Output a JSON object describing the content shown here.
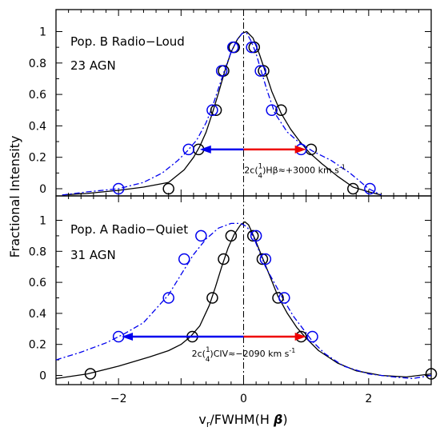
{
  "chart_data": [
    {
      "type": "line",
      "panel": "top",
      "label_line1": "Pop. B Radio−Loud",
      "label_line2": "23 AGN",
      "xlim": [
        -3,
        3
      ],
      "ylim": [
        -0.05,
        1.15
      ],
      "y_ticks": [
        "0",
        "0.2",
        "0.4",
        "0.6",
        "0.8",
        "1"
      ],
      "series": [
        {
          "color": "#000000",
          "dash": "solid",
          "marker_color": "#000000",
          "curve": [
            [
              -2.9,
              -0.04
            ],
            [
              -2.5,
              -0.03
            ],
            [
              -2.0,
              -0.01
            ],
            [
              -1.6,
              0.01
            ],
            [
              -1.2,
              0.04
            ],
            [
              -0.95,
              0.12
            ],
            [
              -0.8,
              0.2
            ],
            [
              -0.7,
              0.27
            ],
            [
              -0.6,
              0.36
            ],
            [
              -0.5,
              0.48
            ],
            [
              -0.4,
              0.61
            ],
            [
              -0.3,
              0.75
            ],
            [
              -0.2,
              0.87
            ],
            [
              -0.1,
              0.95
            ],
            [
              -0.02,
              0.99
            ],
            [
              0.05,
              1.0
            ],
            [
              0.15,
              0.96
            ],
            [
              0.25,
              0.86
            ],
            [
              0.35,
              0.74
            ],
            [
              0.45,
              0.62
            ],
            [
              0.6,
              0.48
            ],
            [
              0.75,
              0.38
            ],
            [
              0.9,
              0.3
            ],
            [
              1.05,
              0.23
            ],
            [
              1.25,
              0.16
            ],
            [
              1.5,
              0.08
            ],
            [
              1.75,
              0.01
            ],
            [
              2.0,
              -0.02
            ],
            [
              2.2,
              -0.04
            ]
          ],
          "points": [
            [
              -1.2,
              0.0
            ],
            [
              -0.72,
              0.25
            ],
            [
              -0.44,
              0.5
            ],
            [
              -0.32,
              0.75
            ],
            [
              -0.15,
              0.9
            ],
            [
              0.17,
              0.9
            ],
            [
              0.32,
              0.75
            ],
            [
              0.6,
              0.5
            ],
            [
              1.08,
              0.25
            ],
            [
              1.75,
              0.0
            ]
          ]
        },
        {
          "color": "#0000ee",
          "dash": "dashdot",
          "marker_color": "#0000ee",
          "curve": [
            [
              -2.9,
              -0.04
            ],
            [
              -2.5,
              -0.02
            ],
            [
              -2.0,
              0.0
            ],
            [
              -1.6,
              0.04
            ],
            [
              -1.3,
              0.1
            ],
            [
              -1.05,
              0.18
            ],
            [
              -0.9,
              0.24
            ],
            [
              -0.75,
              0.31
            ],
            [
              -0.6,
              0.42
            ],
            [
              -0.5,
              0.52
            ],
            [
              -0.4,
              0.64
            ],
            [
              -0.3,
              0.76
            ],
            [
              -0.2,
              0.87
            ],
            [
              -0.1,
              0.95
            ],
            [
              -0.02,
              0.99
            ],
            [
              0.05,
              0.99
            ],
            [
              0.12,
              0.94
            ],
            [
              0.2,
              0.86
            ],
            [
              0.28,
              0.75
            ],
            [
              0.38,
              0.62
            ],
            [
              0.5,
              0.48
            ],
            [
              0.7,
              0.36
            ],
            [
              0.9,
              0.29
            ],
            [
              1.1,
              0.24
            ],
            [
              1.4,
              0.18
            ],
            [
              1.7,
              0.1
            ],
            [
              2.0,
              0.0
            ],
            [
              2.2,
              -0.04
            ]
          ],
          "points": [
            [
              -2.0,
              0.0
            ],
            [
              -0.88,
              0.25
            ],
            [
              -0.5,
              0.5
            ],
            [
              -0.35,
              0.75
            ],
            [
              -0.17,
              0.9
            ],
            [
              0.13,
              0.9
            ],
            [
              0.27,
              0.75
            ],
            [
              0.45,
              0.5
            ],
            [
              0.92,
              0.25
            ],
            [
              2.02,
              0.0
            ]
          ]
        }
      ],
      "arrow": {
        "y": 0.25,
        "x_start": 0,
        "x_blue_end": -0.7,
        "x_red_end": 1.0
      },
      "annotation": {
        "pre": "2c(",
        "num": "1",
        "den": "4",
        "post": ")Hβ≈+3000 km s",
        "sup": "-1",
        "color": "#ee0000",
        "x": 0.82,
        "y": 0.1
      }
    },
    {
      "type": "line",
      "panel": "bottom",
      "label_line1": "Pop. A Radio−Quiet",
      "label_line2": "31 AGN",
      "xlim": [
        -3,
        3
      ],
      "ylim": [
        -0.05,
        1.15
      ],
      "y_ticks": [
        "0",
        "0.2",
        "0.4",
        "0.6",
        "0.8",
        "1"
      ],
      "x_ticks": [
        "−2",
        "0",
        "2"
      ],
      "series": [
        {
          "color": "#000000",
          "dash": "solid",
          "marker_color": "#000000",
          "curve": [
            [
              -3.0,
              -0.02
            ],
            [
              -2.5,
              0.01
            ],
            [
              -2.0,
              0.06
            ],
            [
              -1.5,
              0.12
            ],
            [
              -1.2,
              0.16
            ],
            [
              -1.0,
              0.2
            ],
            [
              -0.85,
              0.25
            ],
            [
              -0.7,
              0.32
            ],
            [
              -0.55,
              0.45
            ],
            [
              -0.45,
              0.57
            ],
            [
              -0.35,
              0.7
            ],
            [
              -0.25,
              0.82
            ],
            [
              -0.15,
              0.91
            ],
            [
              -0.05,
              0.97
            ],
            [
              0.02,
              0.99
            ],
            [
              0.08,
              0.97
            ],
            [
              0.18,
              0.88
            ],
            [
              0.28,
              0.78
            ],
            [
              0.4,
              0.66
            ],
            [
              0.55,
              0.51
            ],
            [
              0.7,
              0.4
            ],
            [
              0.85,
              0.31
            ],
            [
              1.0,
              0.24
            ],
            [
              1.2,
              0.16
            ],
            [
              1.5,
              0.08
            ],
            [
              1.8,
              0.03
            ],
            [
              2.2,
              0.0
            ],
            [
              2.6,
              -0.01
            ],
            [
              3.0,
              0.01
            ]
          ],
          "points": [
            [
              -2.45,
              0.01
            ],
            [
              -0.82,
              0.25
            ],
            [
              -0.5,
              0.5
            ],
            [
              -0.32,
              0.75
            ],
            [
              -0.2,
              0.9
            ],
            [
              0.15,
              0.9
            ],
            [
              0.3,
              0.75
            ],
            [
              0.55,
              0.5
            ],
            [
              0.92,
              0.25
            ],
            [
              3.0,
              0.01
            ]
          ]
        },
        {
          "color": "#0000ee",
          "dash": "dashdot",
          "marker_color": "#0000ee",
          "curve": [
            [
              -3.0,
              0.1
            ],
            [
              -2.6,
              0.15
            ],
            [
              -2.2,
              0.21
            ],
            [
              -1.9,
              0.27
            ],
            [
              -1.6,
              0.34
            ],
            [
              -1.4,
              0.43
            ],
            [
              -1.2,
              0.52
            ],
            [
              -1.0,
              0.65
            ],
            [
              -0.8,
              0.78
            ],
            [
              -0.6,
              0.88
            ],
            [
              -0.4,
              0.95
            ],
            [
              -0.2,
              0.98
            ],
            [
              -0.05,
              0.98
            ],
            [
              0.05,
              0.96
            ],
            [
              0.15,
              0.9
            ],
            [
              0.25,
              0.8
            ],
            [
              0.35,
              0.7
            ],
            [
              0.5,
              0.59
            ],
            [
              0.65,
              0.48
            ],
            [
              0.8,
              0.38
            ],
            [
              0.95,
              0.3
            ],
            [
              1.1,
              0.22
            ],
            [
              1.3,
              0.14
            ],
            [
              1.6,
              0.06
            ],
            [
              2.0,
              0.01
            ],
            [
              2.4,
              -0.01
            ],
            [
              2.7,
              -0.02
            ],
            [
              3.0,
              0.0
            ]
          ],
          "points": [
            [
              -2.0,
              0.25
            ],
            [
              -1.2,
              0.5
            ],
            [
              -0.95,
              0.75
            ],
            [
              -0.68,
              0.9
            ],
            [
              0.2,
              0.9
            ],
            [
              0.35,
              0.75
            ],
            [
              0.65,
              0.5
            ],
            [
              1.1,
              0.25
            ]
          ]
        }
      ],
      "arrow": {
        "y": 0.25,
        "x_start": 0,
        "x_blue_end": -1.95,
        "x_red_end": 1.0
      },
      "annotation": {
        "pre": "2c(",
        "num": "1",
        "den": "4",
        "post": ")CIV≈−2090 km s",
        "sup": "-1",
        "color": "#0000ee",
        "x": 0.0,
        "y": 0.12
      }
    }
  ],
  "y_axis_title": "Fractional Intensity",
  "x_axis_title": {
    "main": "v",
    "sub": "r",
    "rest": "/FWHM(H ",
    "beta": "β",
    "close": ")"
  }
}
